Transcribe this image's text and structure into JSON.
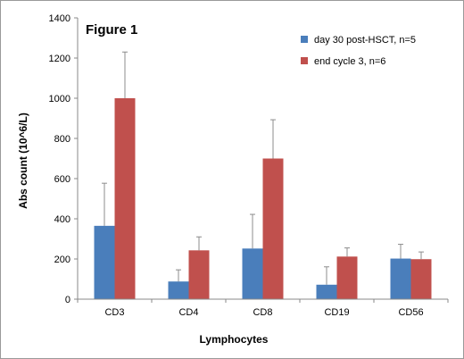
{
  "chart_data": {
    "type": "bar",
    "title": "Figure 1",
    "xlabel": "Lymphocytes",
    "ylabel": "Abs count (10^6/L)",
    "ylim": [
      0,
      1400
    ],
    "yticks": [
      0,
      200,
      400,
      600,
      800,
      1000,
      1200,
      1400
    ],
    "grid": false,
    "legend_position": "top-right",
    "categories": [
      "CD3",
      "CD4",
      "CD8",
      "CD19",
      "CD56"
    ],
    "series": [
      {
        "name": "day 30 post-HSCT, n=5",
        "color": "#4a7ebb",
        "values": [
          365,
          88,
          252,
          72,
          202
        ],
        "error_upper": [
          577,
          146,
          422,
          161,
          273
        ]
      },
      {
        "name": "end cycle 3, n=6",
        "color": "#c0504d",
        "values": [
          1000,
          243,
          700,
          212,
          199
        ],
        "error_upper": [
          1230,
          310,
          893,
          255,
          235
        ]
      }
    ]
  }
}
